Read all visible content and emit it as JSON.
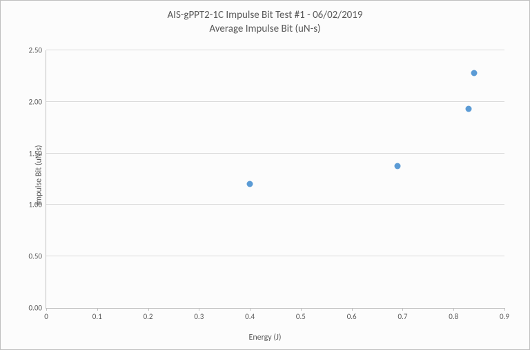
{
  "chart": {
    "type": "scatter",
    "title_line1": "AIS-gPPT2-1C Impulse Bit Test #1 - 06/02/2019",
    "title_line2": "Average Impulse Bit (uN-s)",
    "title_fontsize": 15,
    "title_color": "#595959",
    "xlabel": "Energy (J)",
    "ylabel": "Impulse Bit (uN-s)",
    "label_fontsize": 12,
    "label_color": "#595959",
    "tick_fontsize": 11,
    "tick_color": "#595959",
    "background_color": "#fcfcfc",
    "border_color": "#bfbfbf",
    "grid_color": "#d9d9d9",
    "xlim": [
      0,
      0.9
    ],
    "ylim": [
      0,
      2.5
    ],
    "xticks": [
      0,
      0.1,
      0.2,
      0.3,
      0.4,
      0.5,
      0.6,
      0.7,
      0.8,
      0.9
    ],
    "xticklabels": [
      "0",
      "0.1",
      "0.2",
      "0.3",
      "0.4",
      "0.5",
      "0.6",
      "0.7",
      "0.8",
      "0.9"
    ],
    "yticks": [
      0.0,
      0.5,
      1.0,
      1.5,
      2.0,
      2.5
    ],
    "yticklabels": [
      "0.00",
      "0.50",
      "1.00",
      "1.50",
      "2.00",
      "2.50"
    ],
    "marker_color": "#5b9bd5",
    "marker_size": 9,
    "data": [
      {
        "x": 0.4,
        "y": 1.2
      },
      {
        "x": 0.69,
        "y": 1.38
      },
      {
        "x": 0.83,
        "y": 1.93
      },
      {
        "x": 0.84,
        "y": 2.28
      }
    ]
  }
}
